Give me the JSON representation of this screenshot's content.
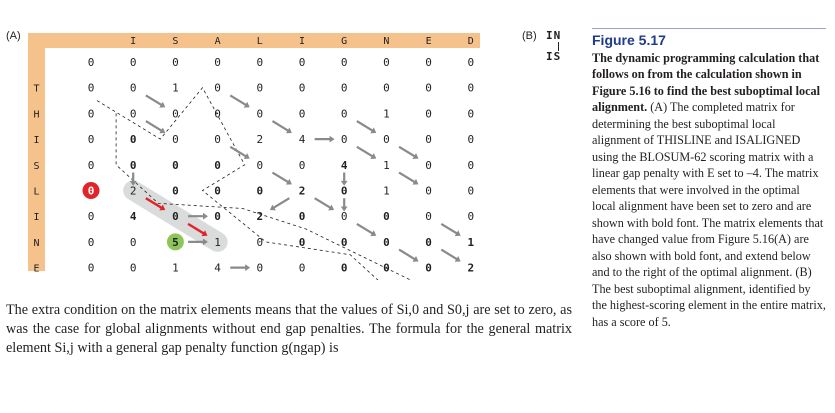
{
  "panel_a_label": "(A)",
  "panel_b_label": "(B)",
  "col_headers": [
    "I",
    "S",
    "A",
    "L",
    "I",
    "G",
    "N",
    "E",
    "D"
  ],
  "row_headers": [
    "T",
    "H",
    "I",
    "S",
    "L",
    "I",
    "N",
    "E"
  ],
  "matrix": [
    [
      "0",
      "0",
      "0",
      "0",
      "0",
      "0",
      "0",
      "0",
      "0",
      "0"
    ],
    [
      "0",
      "0",
      "1",
      "0",
      "0",
      "0",
      "0",
      "0",
      "0",
      "0"
    ],
    [
      "0",
      "0",
      "0",
      "0",
      "0",
      "0",
      "0",
      "1",
      "0",
      "0"
    ],
    [
      "0",
      "0",
      "0",
      "0",
      "2",
      "4",
      "0",
      "0",
      "0",
      "0"
    ],
    [
      "0",
      "0",
      "0",
      "0",
      "0",
      "0",
      "4",
      "1",
      "0",
      "0"
    ],
    [
      "0",
      "2",
      "0",
      "0",
      "0",
      "2",
      "0",
      "1",
      "0",
      "0"
    ],
    [
      "0",
      "4",
      "0",
      "0",
      "2",
      "0",
      "0",
      "0",
      "0",
      "0"
    ],
    [
      "0",
      "0",
      "5",
      "1",
      "0",
      "0",
      "0",
      "0",
      "0",
      "1"
    ],
    [
      "0",
      "0",
      "1",
      "4",
      "0",
      "0",
      "0",
      "0",
      "0",
      "2"
    ]
  ],
  "bold_cells": [
    [
      3,
      1
    ],
    [
      4,
      1
    ],
    [
      4,
      2
    ],
    [
      4,
      3
    ],
    [
      5,
      2
    ],
    [
      5,
      3
    ],
    [
      5,
      4
    ],
    [
      5,
      5
    ],
    [
      6,
      1
    ],
    [
      6,
      2
    ],
    [
      6,
      3
    ],
    [
      6,
      4
    ],
    [
      6,
      5
    ],
    [
      7,
      5
    ],
    [
      7,
      6
    ],
    [
      7,
      7
    ],
    [
      7,
      8
    ],
    [
      8,
      6
    ],
    [
      8,
      7
    ],
    [
      8,
      8
    ],
    [
      8,
      9
    ],
    [
      7,
      9
    ],
    [
      6,
      7
    ],
    [
      5,
      6
    ],
    [
      4,
      6
    ]
  ],
  "zeroed_path": [
    [
      5,
      1
    ],
    [
      6,
      2
    ],
    [
      7,
      3
    ]
  ],
  "best_cell": [
    7,
    2
  ],
  "alignment_b": {
    "top": [
      "I",
      "N"
    ],
    "bottom": [
      "I",
      "S"
    ]
  },
  "figure_title": "Figure 5.17",
  "caption_bold": "The dynamic programming calculation that follows on from the calculation shown in Figure 5.16 to find the best suboptimal local alignment.",
  "caption_rest": " (A) The completed matrix for determining the best suboptimal local alignment of THISLINE and ISALIGNED using the BLOSUM-62 scoring matrix with a linear gap penalty with E set to –4. The matrix elements that were involved in the optimal local alignment have been set to zero and are shown with bold font. The matrix elements that have changed value from Figure 5.16(A) are also shown with bold font, and extend below and to the right of the optimal alignment. (B) The best suboptimal alignment, identified by the highest-scoring element in the entire matrix, has a score of 5.",
  "body_paragraph": "The extra condition on the matrix elements means that the values of Si,0 and S0,j are set to zero, as was the case for global alignments without end gap penalties. The formula for the general matrix element Si,j with a general gap penalty function g(ngap) is",
  "colors": {
    "header_band": "#f5c28c",
    "arrow_gray": "#8a8a8a",
    "red_marker": "#e0242a",
    "green_marker": "#8fc45a",
    "path_band": "#d9dcdb",
    "title_blue": "#1f3a8a"
  }
}
